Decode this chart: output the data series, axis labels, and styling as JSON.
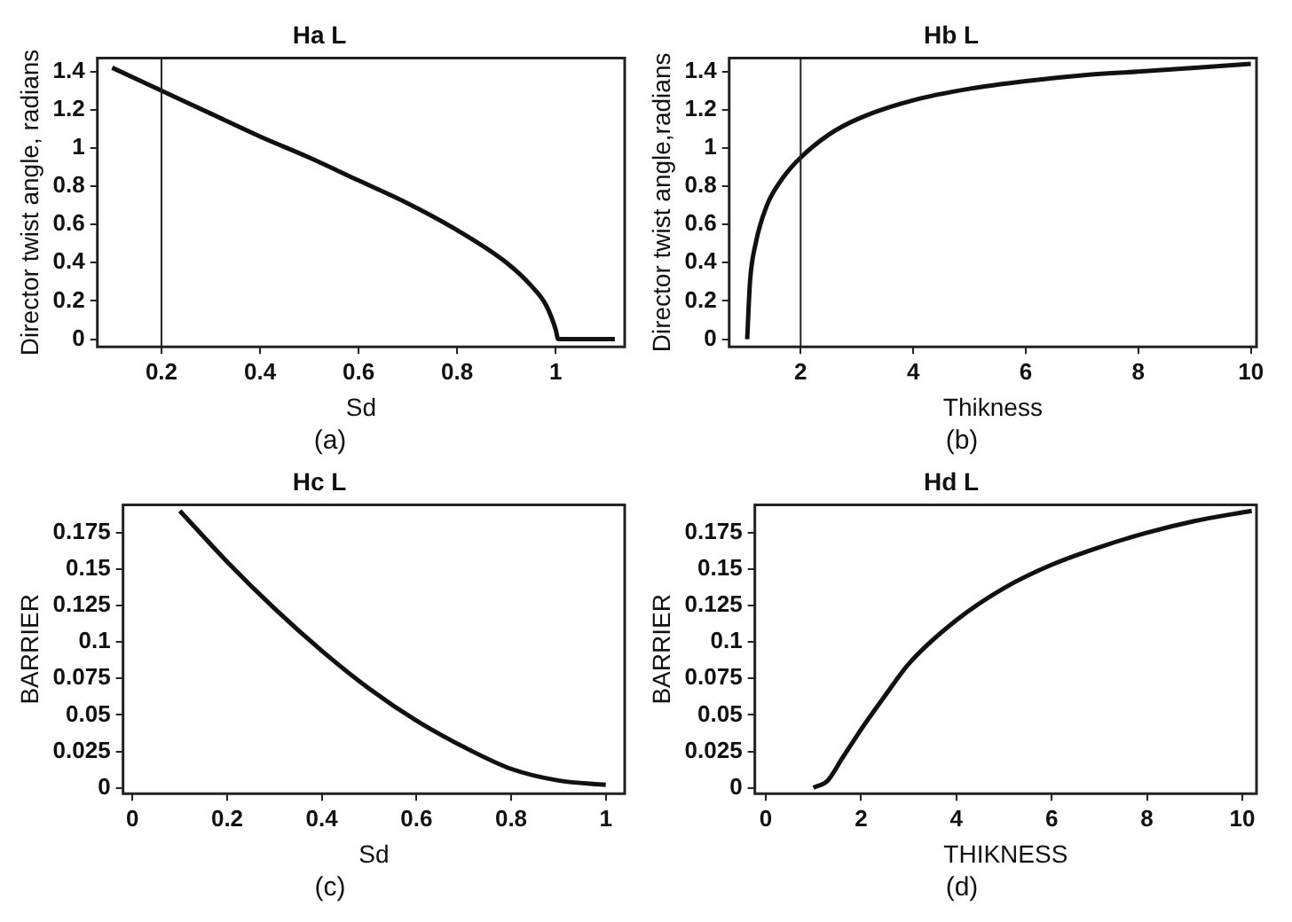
{
  "chart_data": [
    {
      "type": "line",
      "title": "Ha L",
      "xlabel": "Sd",
      "ylabel": "Director twist angle, radians",
      "annotations": [
        "(a)"
      ],
      "xlim": [
        0.07,
        1.14
      ],
      "ylim": [
        -0.04,
        1.47
      ],
      "xticks": [
        0.2,
        0.4,
        0.6,
        0.8,
        1
      ],
      "yticks": [
        0,
        0.2,
        0.4,
        0.6,
        0.8,
        1,
        1.2,
        1.4
      ],
      "grid": false,
      "legend": false,
      "marker": "none",
      "line_style": "solid",
      "series": [
        {
          "color": "#111111",
          "x": [
            0.1,
            0.2,
            0.3,
            0.4,
            0.5,
            0.6,
            0.7,
            0.8,
            0.9,
            0.95,
            0.98,
            1.0,
            1.005,
            1.12
          ],
          "values": [
            1.42,
            1.3,
            1.18,
            1.06,
            0.95,
            0.83,
            0.71,
            0.57,
            0.4,
            0.28,
            0.18,
            0.05,
            0,
            0
          ]
        }
      ],
      "ref_lines": [
        {
          "axis": "x",
          "value": 0.2,
          "color": "#222222"
        }
      ]
    },
    {
      "type": "line",
      "title": "Hb L",
      "xlabel": "Thikness",
      "ylabel": "Director twist angle,radians",
      "annotations": [
        "(b)"
      ],
      "xlim": [
        0.73,
        10.1
      ],
      "ylim": [
        -0.04,
        1.47
      ],
      "xticks": [
        2,
        4,
        6,
        8,
        10
      ],
      "yticks": [
        0,
        0.2,
        0.4,
        0.6,
        0.8,
        1,
        1.2,
        1.4
      ],
      "grid": false,
      "legend": false,
      "marker": "none",
      "line_style": "solid",
      "series": [
        {
          "color": "#111111",
          "x": [
            1.05,
            1.1,
            1.2,
            1.4,
            1.7,
            2,
            2.5,
            3,
            4,
            5,
            6,
            7,
            8,
            9,
            10
          ],
          "values": [
            0,
            0.3,
            0.5,
            0.7,
            0.85,
            0.95,
            1.07,
            1.15,
            1.25,
            1.31,
            1.35,
            1.38,
            1.4,
            1.42,
            1.44
          ]
        }
      ],
      "ref_lines": [
        {
          "axis": "x",
          "value": 2,
          "color": "#222222"
        }
      ]
    },
    {
      "type": "line",
      "title": "Hc L",
      "xlabel": "Sd",
      "ylabel": "BARRIER",
      "annotations": [
        "(c)"
      ],
      "xlim": [
        -0.02,
        1.04
      ],
      "ylim": [
        -0.004,
        0.194
      ],
      "xticks": [
        0,
        0.2,
        0.4,
        0.6,
        0.8,
        1
      ],
      "yticks": [
        0,
        0.025,
        0.05,
        0.075,
        0.1,
        0.125,
        0.15,
        0.175
      ],
      "grid": false,
      "legend": false,
      "marker": "none",
      "line_style": "solid",
      "series": [
        {
          "color": "#111111",
          "x": [
            0.1,
            0.2,
            0.3,
            0.4,
            0.5,
            0.6,
            0.7,
            0.8,
            0.9,
            1.0
          ],
          "values": [
            0.19,
            0.155,
            0.123,
            0.094,
            0.068,
            0.046,
            0.028,
            0.013,
            0.005,
            0.002
          ]
        }
      ]
    },
    {
      "type": "line",
      "title": "Hd L",
      "xlabel": "THIKNESS",
      "ylabel": "BARRIER",
      "annotations": [
        "(d)"
      ],
      "xlim": [
        -0.23,
        10.3
      ],
      "ylim": [
        -0.004,
        0.194
      ],
      "xticks": [
        0,
        2,
        4,
        6,
        8,
        10
      ],
      "yticks": [
        0,
        0.025,
        0.05,
        0.075,
        0.1,
        0.125,
        0.15,
        0.175
      ],
      "grid": false,
      "legend": false,
      "marker": "none",
      "line_style": "solid",
      "series": [
        {
          "color": "#111111",
          "x": [
            1,
            1.3,
            1.6,
            2,
            2.5,
            3,
            4,
            5,
            6,
            7,
            8,
            9,
            10.2
          ],
          "values": [
            0,
            0.005,
            0.02,
            0.04,
            0.063,
            0.085,
            0.115,
            0.137,
            0.153,
            0.165,
            0.175,
            0.183,
            0.19
          ]
        }
      ]
    }
  ]
}
